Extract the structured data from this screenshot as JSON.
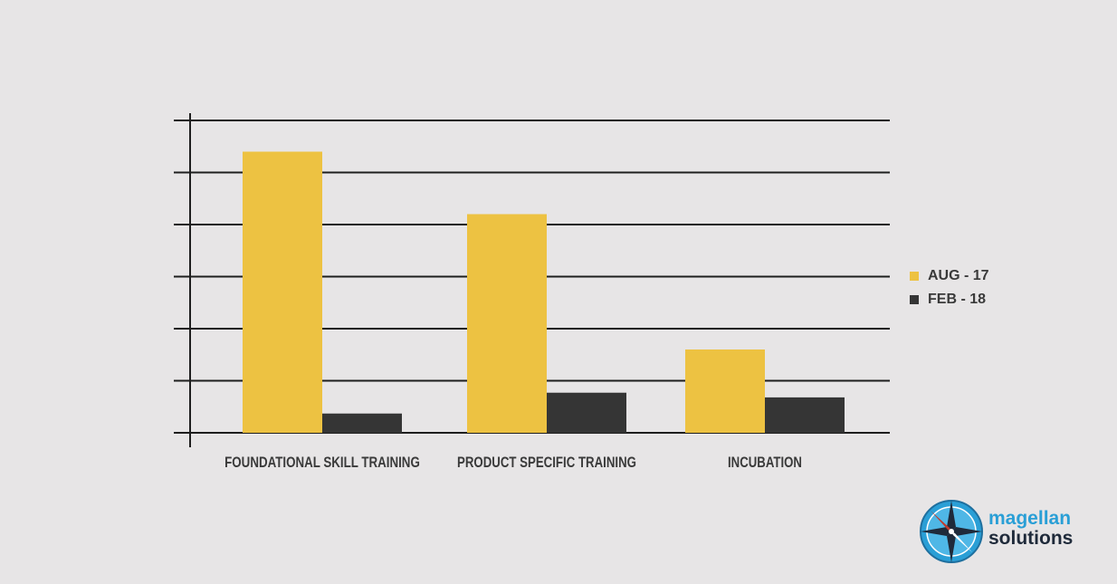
{
  "chart_data": {
    "type": "bar",
    "title": "",
    "xlabel": "",
    "ylabel": "",
    "categories": [
      "FOUNDATIONAL SKILL TRAINING",
      "PRODUCT SPECIFIC TRAINING",
      "INCUBATION"
    ],
    "series": [
      {
        "name": "AUG - 17",
        "values": [
          5.4,
          4.2,
          1.6
        ]
      },
      {
        "name": "FEB - 18",
        "values": [
          0.37,
          0.77,
          0.68
        ]
      }
    ],
    "ylim": [
      0,
      6
    ],
    "grid": true,
    "legend_position": "right"
  },
  "colors": {
    "aug_17": "#edc242",
    "feb_18": "#353535",
    "grid": "#1e1e1e",
    "background": "#e7e5e6"
  },
  "logo": {
    "line1": "magellan",
    "line2": "solutions",
    "icon": "compass-rose-icon"
  }
}
